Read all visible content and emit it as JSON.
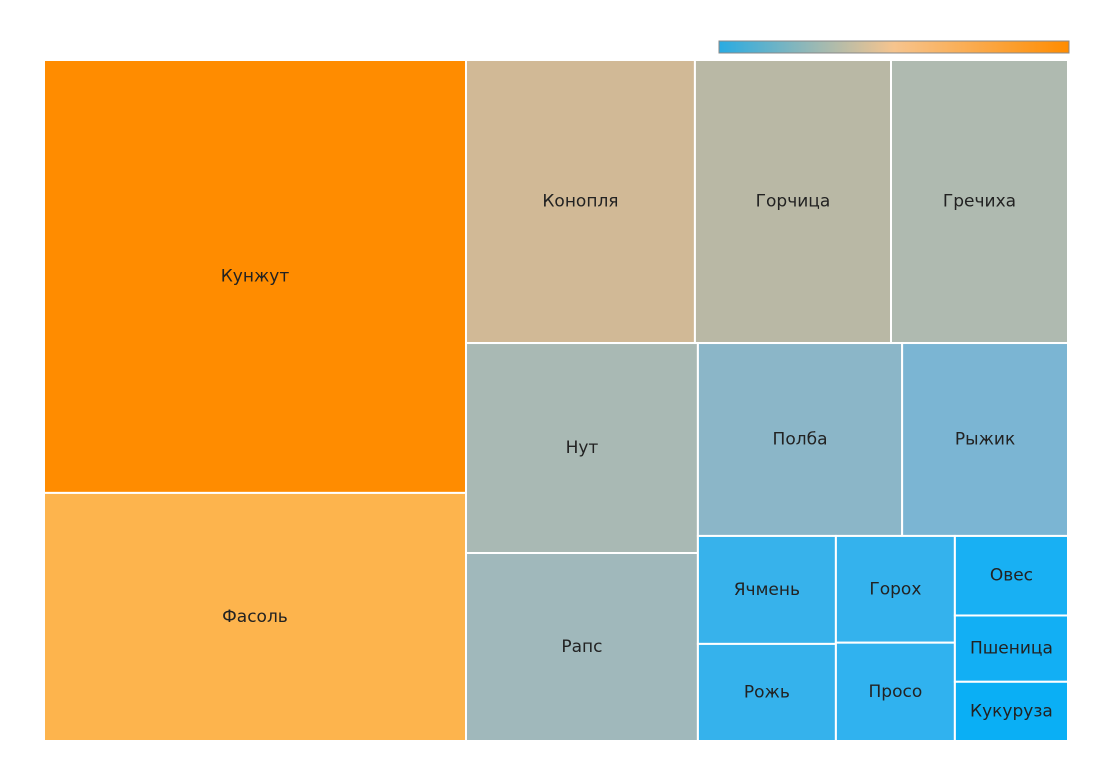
{
  "chart_data": {
    "type": "treemap",
    "categories": [
      "Кунжут",
      "Фасоль",
      "Конопля",
      "Горчица",
      "Гречиха",
      "Нут",
      "Рапс",
      "Полба",
      "Рыжик",
      "Ячмень",
      "Рожь",
      "Горох",
      "Просо",
      "Овес",
      "Пшеница",
      "Кукуруза"
    ],
    "values": [
      182.7,
      104.7,
      64.8,
      55.5,
      50.1,
      48.7,
      43.6,
      39.4,
      32.0,
      14.9,
      13.4,
      12.7,
      11.7,
      9.0,
      7.5,
      6.7
    ],
    "colors": [
      "#ff8c00",
      "#fdb44d",
      "#d1b996",
      "#b9b8a5",
      "#afbab0",
      "#a9b9b4",
      "#a0b8bb",
      "#8bb6c8",
      "#7bb5d3",
      "#37b2eb",
      "#35b2ec",
      "#34b2ed",
      "#30b2ef",
      "#18b0f3",
      "#12aff4",
      "#0aaff5"
    ]
  }
}
